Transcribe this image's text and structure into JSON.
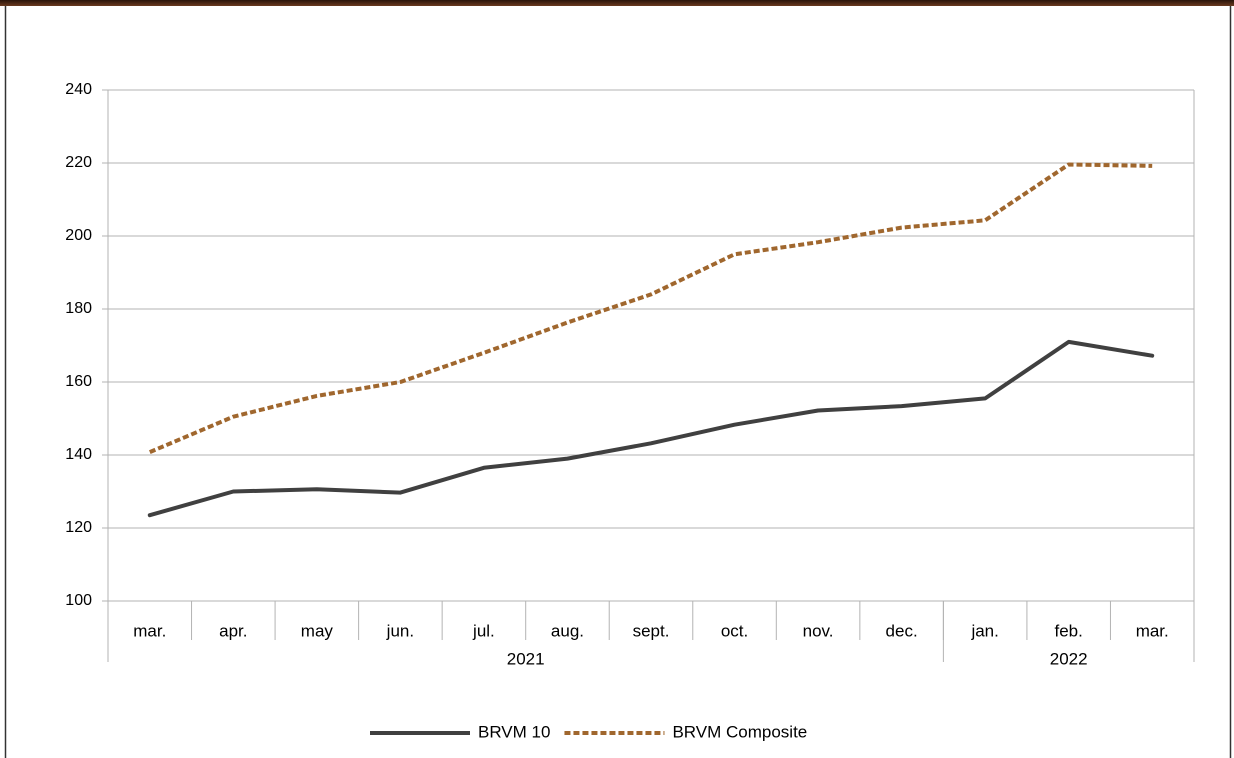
{
  "chart_data": {
    "type": "line",
    "categories": [
      "mar.",
      "apr.",
      "may",
      "jun.",
      "jul.",
      "aug.",
      "sept.",
      "oct.",
      "nov.",
      "dec.",
      "jan.",
      "feb.",
      "mar."
    ],
    "x_groups": [
      {
        "label": "2021",
        "span": 10
      },
      {
        "label": "2022",
        "span": 3
      }
    ],
    "series": [
      {
        "name": "BRVM 10",
        "color": "#404040",
        "dashed": false,
        "values": [
          123.5,
          130,
          130.6,
          129.7,
          136.5,
          139,
          143.2,
          148.3,
          152.2,
          153.4,
          155.5,
          171,
          167.2
        ]
      },
      {
        "name": "BRVM Composite",
        "color": "#a0672e",
        "dashed": true,
        "values": [
          140.8,
          150.5,
          156.2,
          160,
          168,
          176.3,
          184,
          195,
          198.3,
          202.3,
          204.3,
          219.6,
          219.2
        ]
      }
    ],
    "ylim": [
      100,
      240
    ],
    "yticks": [
      100,
      120,
      140,
      160,
      180,
      200,
      220,
      240
    ],
    "grid": true,
    "legend": "bottom"
  }
}
